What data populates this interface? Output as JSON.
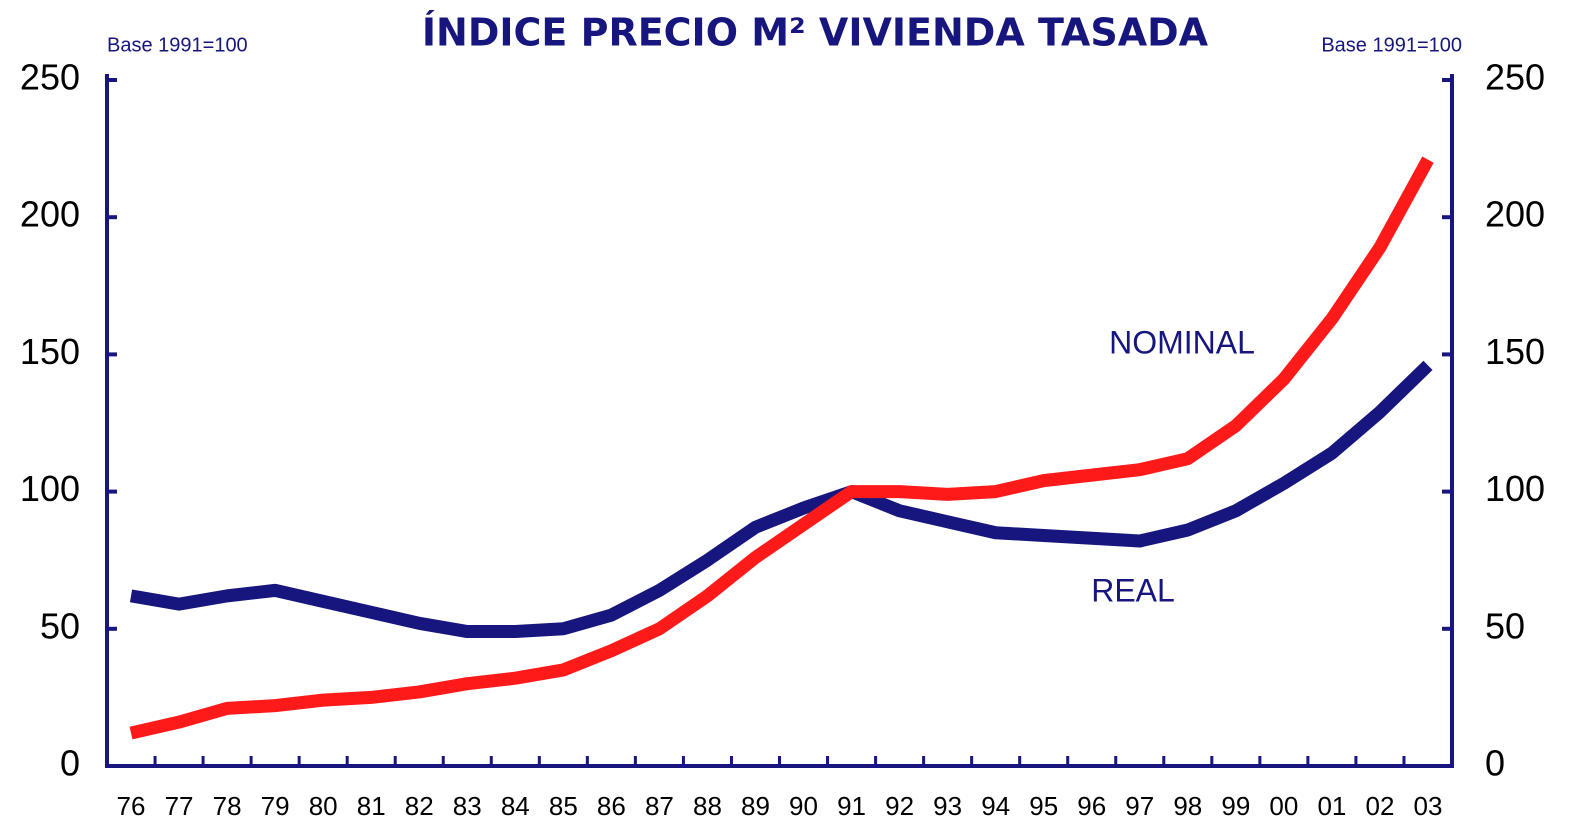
{
  "chart_data": {
    "type": "line",
    "title": "ÍNDICE PRECIO M² VIVIENDA TASADA",
    "annotations": [
      "Base 1991=100",
      "Base 1991=100",
      "NOMINAL",
      "REAL"
    ],
    "categories": [
      "76",
      "77",
      "78",
      "79",
      "80",
      "81",
      "82",
      "83",
      "84",
      "85",
      "86",
      "87",
      "88",
      "89",
      "90",
      "91",
      "92",
      "93",
      "94",
      "95",
      "96",
      "97",
      "98",
      "99",
      "00",
      "01",
      "02",
      "03"
    ],
    "series": [
      {
        "name": "REAL",
        "color": "#16167e",
        "values": [
          62,
          59,
          62,
          64,
          60,
          56,
          52,
          49,
          49,
          50,
          55,
          64,
          75,
          87,
          94,
          100,
          93,
          89,
          85,
          84,
          83,
          82,
          86,
          93,
          103,
          114,
          129,
          146
        ]
      },
      {
        "name": "NOMINAL",
        "color": "#ff1a1a",
        "values": [
          12,
          16,
          21,
          22,
          24,
          25,
          27,
          30,
          32,
          35,
          42,
          50,
          62,
          76,
          88,
          100,
          100,
          99,
          100,
          104,
          106,
          108,
          112,
          124,
          141,
          163,
          189,
          221
        ]
      }
    ],
    "ylim": [
      0,
      250
    ],
    "yticks": [
      0,
      50,
      100,
      150,
      200,
      250
    ],
    "y2lim": [
      0,
      250
    ],
    "y2ticks": [
      0,
      50,
      100,
      150,
      200,
      250
    ]
  }
}
